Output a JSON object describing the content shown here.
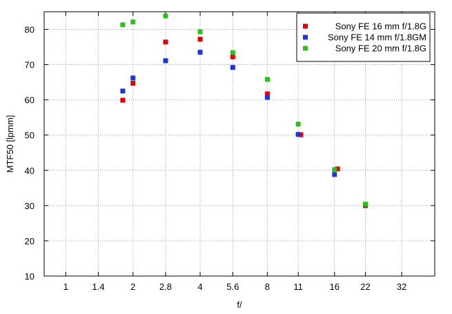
{
  "chart_data": {
    "type": "scatter",
    "xlabel": "f/",
    "ylabel": "MTF50 [lpmm]",
    "x_scale": "log2",
    "x_ticks": [
      "1",
      "1.4",
      "2",
      "2.8",
      "4",
      "5.6",
      "8",
      "11",
      "16",
      "22",
      "32"
    ],
    "xlim": [
      0.8,
      45
    ],
    "y_ticks": [
      "10",
      "20",
      "30",
      "40",
      "50",
      "60",
      "70",
      "80"
    ],
    "ylim": [
      10,
      85
    ],
    "grid": true,
    "legend_position": "top-right",
    "series": [
      {
        "name": "Sony FE 16 mm f/1.8G",
        "color": "#e00000",
        "points": [
          {
            "x": 1.8,
            "y": 59.9
          },
          {
            "x": 2.0,
            "y": 64.7
          },
          {
            "x": 2.8,
            "y": 76.4
          },
          {
            "x": 4.0,
            "y": 77.2
          },
          {
            "x": 5.6,
            "y": 72.2
          },
          {
            "x": 8.0,
            "y": 61.7
          },
          {
            "x": 11.3,
            "y": 50.1
          },
          {
            "x": 16.5,
            "y": 40.4
          },
          {
            "x": 22.0,
            "y": 30.0
          }
        ]
      },
      {
        "name": "Sony FE 14 mm f/1.8GM",
        "color": "#1c35d6",
        "points": [
          {
            "x": 1.8,
            "y": 62.5
          },
          {
            "x": 2.0,
            "y": 66.2
          },
          {
            "x": 2.8,
            "y": 71.1
          },
          {
            "x": 4.0,
            "y": 73.5
          },
          {
            "x": 5.6,
            "y": 69.2
          },
          {
            "x": 8.0,
            "y": 60.7
          },
          {
            "x": 11.0,
            "y": 50.2
          },
          {
            "x": 16.0,
            "y": 38.8
          },
          {
            "x": 22.0,
            "y": 30.2
          }
        ]
      },
      {
        "name": "Sony FE 20 mm f/1.8G",
        "color": "#2fbe1e",
        "points": [
          {
            "x": 1.8,
            "y": 81.3
          },
          {
            "x": 2.0,
            "y": 82.1
          },
          {
            "x": 2.8,
            "y": 83.8
          },
          {
            "x": 4.0,
            "y": 79.3
          },
          {
            "x": 5.6,
            "y": 73.4
          },
          {
            "x": 8.0,
            "y": 65.8
          },
          {
            "x": 11.0,
            "y": 53.1
          },
          {
            "x": 16.0,
            "y": 40.2
          },
          {
            "x": 22.0,
            "y": 30.4
          }
        ]
      }
    ]
  }
}
